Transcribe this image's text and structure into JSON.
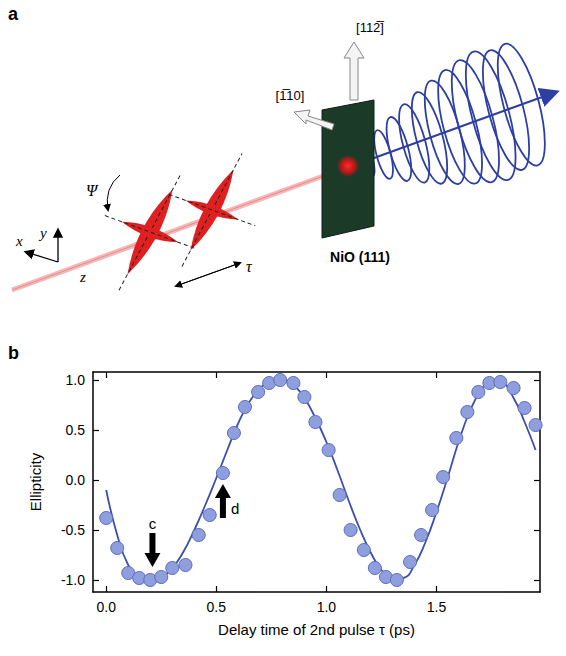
{
  "figure": {
    "panel_labels": [
      "a",
      "b"
    ]
  },
  "diagram": {
    "sample": "NiO (111)",
    "directions": [
      "[112̅]",
      "[1̅10]"
    ],
    "axes": [
      "x",
      "y",
      "z"
    ],
    "polarization_angle": "Ψ",
    "delay": "τ"
  },
  "chart_data": {
    "type": "scatter",
    "x_label": "Delay time of 2nd pulse τ (ps)",
    "y_label": "Ellipticity",
    "xlim": [
      -0.06,
      1.97
    ],
    "xticks": [
      {
        "value": 0,
        "label": "0.0"
      },
      {
        "value": 0.5,
        "label": "0.5"
      },
      {
        "value": 1,
        "label": "1.0"
      },
      {
        "value": 1.5,
        "label": "1.5"
      }
    ],
    "ylim": [
      -1.12,
      1.08
    ],
    "yticks": [
      {
        "value": -1,
        "label": "-1.0"
      },
      {
        "value": -0.5,
        "label": "-0.5"
      },
      {
        "value": 0,
        "label": "0.0"
      },
      {
        "value": 0.5,
        "label": "0.5"
      },
      {
        "value": 1,
        "label": "1.0"
      }
    ],
    "grid": false,
    "series": [
      {
        "type": "scatter",
        "color": "#8f9fdd",
        "marker": "circle",
        "x": [
          0.0,
          0.05,
          0.1,
          0.15,
          0.2,
          0.25,
          0.3,
          0.36,
          0.42,
          0.47,
          0.53,
          0.58,
          0.63,
          0.69,
          0.74,
          0.79,
          0.85,
          0.9,
          0.95,
          1.01,
          1.06,
          1.11,
          1.17,
          1.22,
          1.27,
          1.32,
          1.38,
          1.43,
          1.48,
          1.53,
          1.59,
          1.64,
          1.69,
          1.74,
          1.79,
          1.85,
          1.9,
          1.95
        ],
        "values": [
          -0.38,
          -0.68,
          -0.93,
          -0.98,
          -1.0,
          -0.97,
          -0.88,
          -0.85,
          -0.55,
          -0.35,
          0.07,
          0.47,
          0.73,
          0.88,
          0.97,
          1.0,
          0.97,
          0.83,
          0.58,
          0.3,
          -0.15,
          -0.5,
          -0.7,
          -0.88,
          -0.97,
          -1.0,
          -0.82,
          -0.55,
          -0.3,
          0.03,
          0.42,
          0.68,
          0.88,
          0.97,
          0.98,
          0.92,
          0.72,
          0.55
        ]
      },
      {
        "type": "line",
        "color": "#3b4fae",
        "line_style": "solid",
        "x": [
          0.0,
          0.05,
          0.1,
          0.15,
          0.2,
          0.25,
          0.3,
          0.35,
          0.4,
          0.45,
          0.5,
          0.55,
          0.6,
          0.65,
          0.7,
          0.75,
          0.8,
          0.85,
          0.9,
          0.95,
          1.0,
          1.05,
          1.1,
          1.15,
          1.2,
          1.25,
          1.3,
          1.35,
          1.4,
          1.45,
          1.5,
          1.55,
          1.6,
          1.65,
          1.7,
          1.75,
          1.8,
          1.85,
          1.9,
          1.95
        ],
        "values": [
          -0.1,
          -0.55,
          -0.85,
          -0.98,
          -1.0,
          -0.97,
          -0.88,
          -0.72,
          -0.5,
          -0.25,
          0.02,
          0.3,
          0.57,
          0.78,
          0.92,
          0.99,
          1.0,
          0.95,
          0.82,
          0.62,
          0.38,
          0.1,
          -0.2,
          -0.48,
          -0.72,
          -0.9,
          -0.99,
          -0.98,
          -0.85,
          -0.62,
          -0.32,
          0.02,
          0.38,
          0.68,
          0.89,
          0.99,
          0.97,
          0.82,
          0.58,
          0.3
        ]
      }
    ],
    "annotations": [
      {
        "text": "c",
        "x": 0.21,
        "y": -0.93
      },
      {
        "text": "d",
        "x": 0.53,
        "y": 0.02
      }
    ]
  }
}
